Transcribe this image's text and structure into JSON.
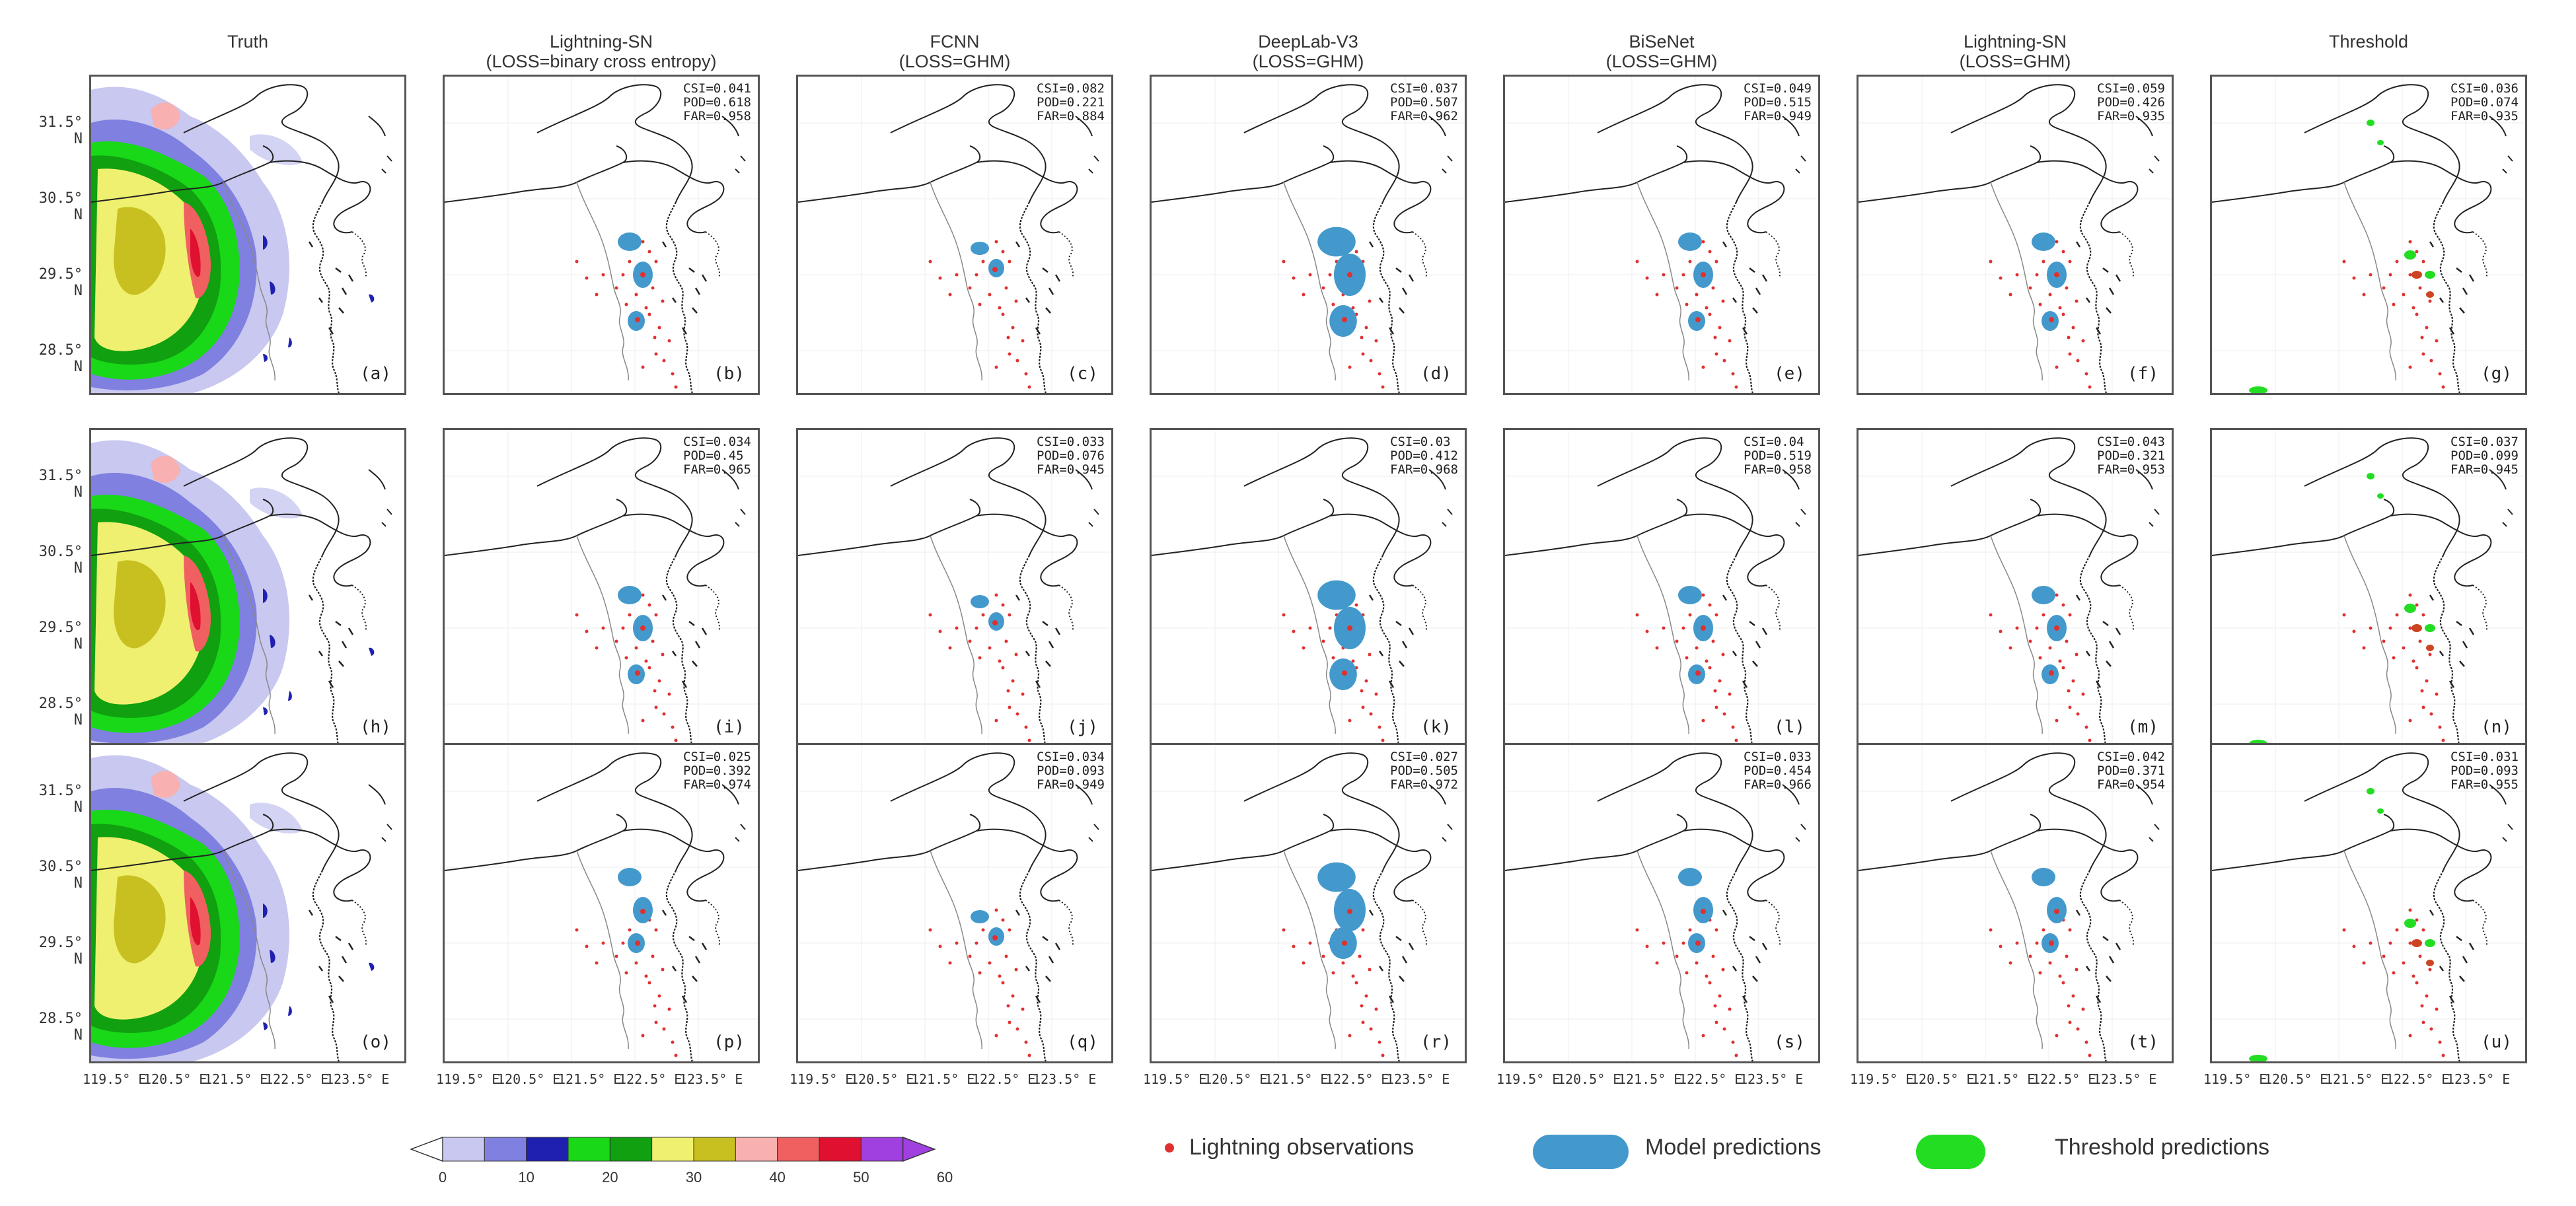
{
  "columns": [
    {
      "title": "Truth",
      "subtitle": ""
    },
    {
      "title": "Lightning-SN",
      "subtitle": "(LOSS=binary cross entropy)"
    },
    {
      "title": "FCNN",
      "subtitle": "(LOSS=GHM)"
    },
    {
      "title": "DeepLab-V3",
      "subtitle": "(LOSS=GHM)"
    },
    {
      "title": "BiSeNet",
      "subtitle": "(LOSS=GHM)"
    },
    {
      "title": "Lightning-SN",
      "subtitle": "(LOSS=GHM)"
    },
    {
      "title": "Threshold",
      "subtitle": ""
    }
  ],
  "rows": [
    {
      "panels": [
        {
          "label": "(a)"
        },
        {
          "label": "(b)",
          "csi": "CSI=0.041",
          "pod": "POD=0.618",
          "far": "FAR=0.958"
        },
        {
          "label": "(c)",
          "csi": "CSI=0.082",
          "pod": "POD=0.221",
          "far": "FAR=0.884"
        },
        {
          "label": "(d)",
          "csi": "CSI=0.037",
          "pod": "POD=0.507",
          "far": "FAR=0.962"
        },
        {
          "label": "(e)",
          "csi": "CSI=0.049",
          "pod": "POD=0.515",
          "far": "FAR=0.949"
        },
        {
          "label": "(f)",
          "csi": "CSI=0.059",
          "pod": "POD=0.426",
          "far": "FAR=0.935"
        },
        {
          "label": "(g)",
          "csi": "CSI=0.036",
          "pod": "POD=0.074",
          "far": "FAR=0.935"
        }
      ]
    },
    {
      "panels": [
        {
          "label": "(h)"
        },
        {
          "label": "(i)",
          "csi": "CSI=0.034",
          "pod": "POD=0.45",
          "far": "FAR=0.965"
        },
        {
          "label": "(j)",
          "csi": "CSI=0.033",
          "pod": "POD=0.076",
          "far": "FAR=0.945"
        },
        {
          "label": "(k)",
          "csi": "CSI=0.03",
          "pod": "POD=0.412",
          "far": "FAR=0.968"
        },
        {
          "label": "(l)",
          "csi": "CSI=0.04",
          "pod": "POD=0.519",
          "far": "FAR=0.958"
        },
        {
          "label": "(m)",
          "csi": "CSI=0.043",
          "pod": "POD=0.321",
          "far": "FAR=0.953"
        },
        {
          "label": "(n)",
          "csi": "CSI=0.037",
          "pod": "POD=0.099",
          "far": "FAR=0.945"
        }
      ]
    },
    {
      "panels": [
        {
          "label": "(o)"
        },
        {
          "label": "(p)",
          "csi": "CSI=0.025",
          "pod": "POD=0.392",
          "far": "FAR=0.974"
        },
        {
          "label": "(q)",
          "csi": "CSI=0.034",
          "pod": "POD=0.093",
          "far": "FAR=0.949"
        },
        {
          "label": "(r)",
          "csi": "CSI=0.027",
          "pod": "POD=0.505",
          "far": "FAR=0.972"
        },
        {
          "label": "(s)",
          "csi": "CSI=0.033",
          "pod": "POD=0.454",
          "far": "FAR=0.966"
        },
        {
          "label": "(t)",
          "csi": "CSI=0.042",
          "pod": "POD=0.371",
          "far": "FAR=0.954"
        },
        {
          "label": "(u)",
          "csi": "CSI=0.031",
          "pod": "POD=0.093",
          "far": "FAR=0.955"
        }
      ]
    }
  ],
  "y_ticks": [
    "31.5° N",
    "30.5° N",
    "29.5° N",
    "28.5° N"
  ],
  "x_ticks": [
    "119.5° E",
    "120.5° E",
    "121.5° E",
    "122.5° E",
    "123.5° E"
  ],
  "legend": {
    "observations": "Lightning observations",
    "model": "Model predictions",
    "threshold": "Threshold predictions",
    "obs_color": "#e03030",
    "model_color": "#4499cc",
    "threshold_color": "#22dd22"
  },
  "colorbar": {
    "ticks": [
      "0",
      "10",
      "20",
      "30",
      "40",
      "50",
      "60"
    ],
    "colors": [
      "#ffffff",
      "#c8c8f0",
      "#8080e0",
      "#2020b0",
      "#18d818",
      "#10a010",
      "#f0f070",
      "#c8c020",
      "#f8b0b0",
      "#f06060",
      "#e01030",
      "#a040e0"
    ]
  }
}
